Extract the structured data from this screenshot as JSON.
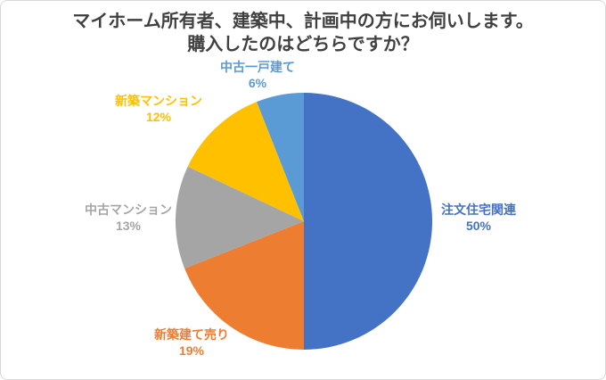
{
  "colors": {
    "title_text": "#404040",
    "frame_border": "#d8d8d8",
    "background": "#ffffff"
  },
  "chart_data": {
    "type": "pie",
    "title_lines": [
      "マイホーム所有者、建築中、計画中の方にお伺いします。",
      "購入したのはどちらですか？"
    ],
    "start_angle_deg": 0,
    "direction": "clockwise",
    "legend_position": "none",
    "slices": [
      {
        "label": "注文住宅関連",
        "value": 50,
        "pct_label": "50%",
        "color": "#4472C4"
      },
      {
        "label": "新築建て売り",
        "value": 19,
        "pct_label": "19%",
        "color": "#ED7D31"
      },
      {
        "label": "中古マンション",
        "value": 13,
        "pct_label": "13%",
        "color": "#A5A5A5"
      },
      {
        "label": "新築マンション",
        "value": 12,
        "pct_label": "12%",
        "color": "#FFC000"
      },
      {
        "label": "中古一戸建て",
        "value": 6,
        "pct_label": "6%",
        "color": "#5B9BD5"
      }
    ]
  }
}
